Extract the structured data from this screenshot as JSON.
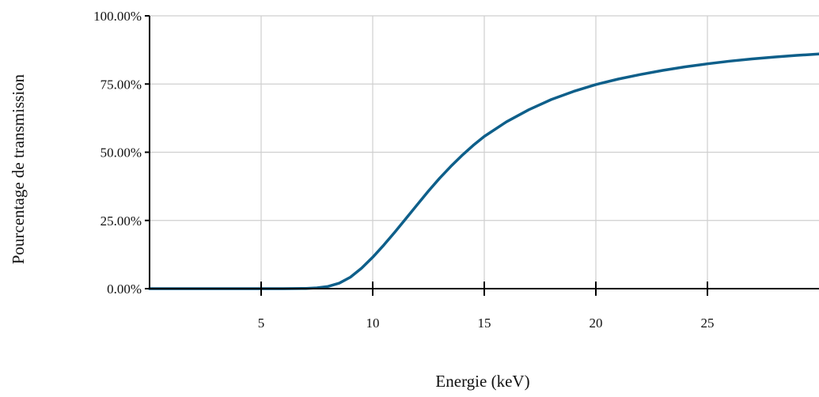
{
  "chart_data": {
    "type": "line",
    "title": "",
    "xlabel": "Energie (keV)",
    "ylabel": "Pourcentage de transmission",
    "xlim": [
      0,
      30
    ],
    "ylim": [
      0,
      100
    ],
    "x_ticks": [
      5,
      10,
      15,
      20,
      25
    ],
    "x_tick_labels": [
      "5",
      "10",
      "15",
      "20",
      "25"
    ],
    "y_ticks": [
      0,
      25,
      50,
      75,
      100
    ],
    "y_tick_labels": [
      "0.00%",
      "25.00%",
      "50.00%",
      "75.00%",
      "100.00%"
    ],
    "grid": true,
    "legend": "none",
    "series": [
      {
        "color": "#0e5f8a",
        "x": [
          0,
          1,
          2,
          3,
          4,
          5,
          6,
          7,
          7.5,
          8,
          8.5,
          9,
          9.5,
          10,
          10.5,
          11,
          11.5,
          12,
          12.5,
          13,
          13.5,
          14,
          14.5,
          15,
          16,
          17,
          18,
          19,
          20,
          21,
          22,
          23,
          24,
          25,
          26,
          27,
          28,
          29,
          30
        ],
        "y": [
          0,
          0,
          0,
          0,
          0,
          0,
          0,
          0.1,
          0.3,
          0.8,
          2,
          4.2,
          7.5,
          11.5,
          16,
          20.8,
          25.8,
          30.8,
          35.8,
          40.5,
          44.8,
          48.8,
          52.5,
          55.8,
          61.2,
          65.6,
          69.3,
          72.3,
          74.8,
          76.8,
          78.5,
          80,
          81.3,
          82.4,
          83.4,
          84.2,
          84.9,
          85.5,
          86
        ]
      }
    ]
  }
}
